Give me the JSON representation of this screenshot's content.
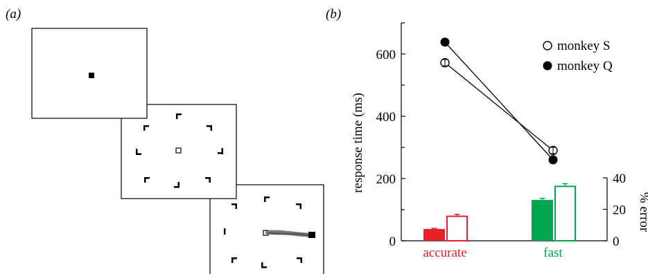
{
  "panel_a": {
    "label": "(a)",
    "screens": [
      {
        "name": "fixation"
      },
      {
        "name": "array"
      },
      {
        "name": "saccade"
      }
    ]
  },
  "panel_b": {
    "label": "(b)"
  },
  "chart_data": {
    "type": "bar",
    "categories": [
      "accurate",
      "fast"
    ],
    "category_colors": {
      "accurate": "#e8202a",
      "fast": "#00a550"
    },
    "y_left": {
      "label": "response time (ms)",
      "lim": [
        0,
        700
      ],
      "ticks": [
        0,
        200,
        400,
        600
      ],
      "minor_ticks": [
        100,
        300,
        500,
        700
      ]
    },
    "y_right": {
      "label": "% error",
      "lim": [
        0,
        40
      ],
      "ticks": [
        0,
        20,
        40
      ]
    },
    "lines": [
      {
        "name": "monkey S",
        "marker": "open-circle",
        "values": [
          572,
          290
        ],
        "errors": [
          10,
          10
        ]
      },
      {
        "name": "monkey Q",
        "marker": "filled-circle",
        "values": [
          638,
          260
        ]
      }
    ],
    "bars": [
      {
        "series": "monkey Q",
        "style": "filled",
        "values": [
          7.5,
          26
        ],
        "errors": [
          0.4,
          1
        ]
      },
      {
        "series": "monkey S",
        "style": "open",
        "values": [
          16,
          35
        ],
        "errors": [
          0.8,
          1.3
        ]
      }
    ],
    "legend": {
      "placement": "top-right",
      "entries": [
        "monkey S",
        "monkey Q"
      ]
    }
  }
}
